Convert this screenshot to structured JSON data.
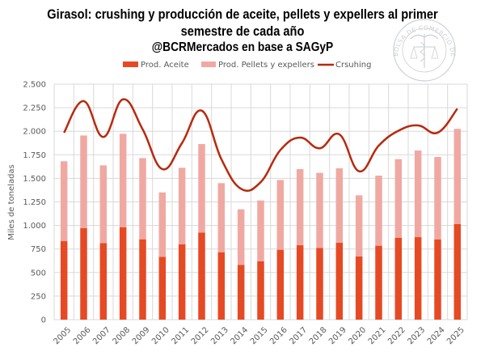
{
  "chart_data": {
    "type": "bar",
    "title": "Girasol: crushing y producción de aceite, pellets y expellers al primer semestre de cada año",
    "title_lines": [
      "Girasol: crushing y producción de aceite, pellets y expellers al primer",
      "semestre de cada año"
    ],
    "subtitle": "@BCRMercados en base a SAGyP",
    "xlabel": "",
    "ylabel": "Miles de toneladas",
    "ylim": [
      0,
      2500
    ],
    "yticks": [
      0,
      250,
      500,
      750,
      1000,
      1250,
      1500,
      1750,
      2000,
      2250,
      2500
    ],
    "ytick_labels": [
      "0",
      "250",
      "500",
      "750",
      "1.000",
      "1.250",
      "1.500",
      "1.750",
      "2.000",
      "2.250",
      "2.500"
    ],
    "grid": true,
    "legend_position": "top",
    "categories": [
      "2005",
      "2006",
      "2007",
      "2008",
      "2009",
      "2010",
      "2011",
      "2012",
      "2013",
      "2014",
      "2015",
      "2016",
      "2017",
      "2018",
      "2019",
      "2020",
      "2021",
      "2022",
      "2023",
      "2024",
      "2025"
    ],
    "series": [
      {
        "name": "Prod. Aceite",
        "kind": "stacked-bar",
        "color": "#E64A24",
        "values": [
          833,
          973,
          813,
          982,
          853,
          667,
          799,
          925,
          716,
          582,
          619,
          742,
          790,
          762,
          816,
          670,
          785,
          870,
          876,
          851,
          1014
        ]
      },
      {
        "name": "Prod. Pellets y expellers",
        "kind": "stacked-bar",
        "color": "#F0A9A2",
        "values": [
          848,
          982,
          825,
          991,
          862,
          684,
          813,
          939,
          733,
          589,
          646,
          741,
          808,
          796,
          791,
          650,
          744,
          834,
          920,
          876,
          1011
        ]
      },
      {
        "name": "Crsuhing",
        "kind": "line",
        "color": "#B8290D",
        "values": [
          1985,
          2320,
          1939,
          2339,
          2020,
          1598,
          1875,
          2219,
          1704,
          1389,
          1460,
          1800,
          1933,
          1819,
          1967,
          1575,
          1847,
          2005,
          2062,
          1985,
          2240
        ]
      }
    ]
  },
  "watermark": {
    "text": "BOLSA DE COMERCIO DE ROSARIO",
    "icon": "caduceus-scales-seal-icon"
  }
}
